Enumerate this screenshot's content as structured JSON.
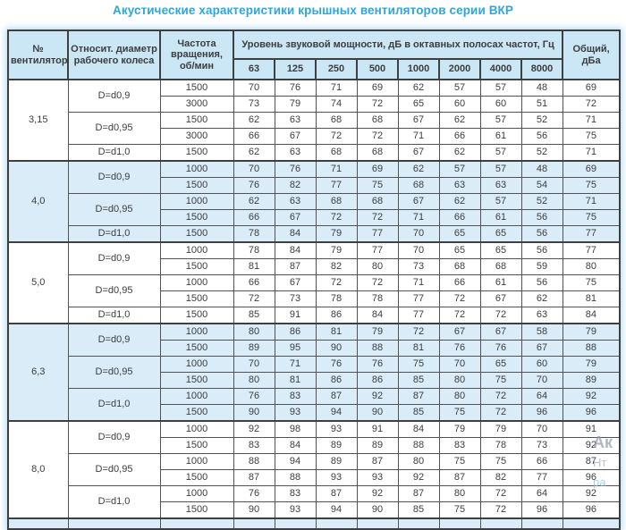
{
  "title": "Акустические характеристики крышных вентиляторов серии ВКР",
  "colors": {
    "title_accent": "#2BA7DB",
    "header_bg": "#CBE6F4",
    "shaded_section_bg": "#D9ECF8",
    "border": "#3D3F41",
    "text": "#3B3D3F"
  },
  "watermark": {
    "line1": "Ак",
    "line2": "Нт",
    "line3": "ра"
  },
  "table": {
    "headers": {
      "fan_number": "№ вентилятора",
      "rel_diameter": "Относит. диаметр рабочего колеса",
      "rotation_freq": "Частота вращения, об/мин",
      "sound_power": "Уровень звуковой мощности, дБ в октавных полосах частот, Гц",
      "frequencies": [
        "63",
        "125",
        "250",
        "500",
        "1000",
        "2000",
        "4000",
        "8000"
      ],
      "total": "Общий, дБа"
    },
    "sections": [
      {
        "fan": "3,15",
        "shaded": false,
        "groups": [
          {
            "diameter": "D=d0,9",
            "rows": [
              {
                "rpm": "1500",
                "levels": [
                  70,
                  76,
                  71,
                  69,
                  62,
                  57,
                  57,
                  48
                ],
                "total": 69
              },
              {
                "rpm": "3000",
                "levels": [
                  73,
                  79,
                  74,
                  72,
                  65,
                  60,
                  60,
                  51
                ],
                "total": 72
              }
            ]
          },
          {
            "diameter": "D=d0,95",
            "rows": [
              {
                "rpm": "1500",
                "levels": [
                  62,
                  63,
                  68,
                  68,
                  67,
                  62,
                  57,
                  52
                ],
                "total": 71
              },
              {
                "rpm": "3000",
                "levels": [
                  66,
                  67,
                  72,
                  72,
                  71,
                  66,
                  61,
                  56
                ],
                "total": 75
              }
            ]
          },
          {
            "diameter": "D=d1,0",
            "rows": [
              {
                "rpm": "1500",
                "levels": [
                  62,
                  63,
                  68,
                  68,
                  67,
                  62,
                  57,
                  52
                ],
                "total": 71
              }
            ]
          }
        ]
      },
      {
        "fan": "4,0",
        "shaded": true,
        "groups": [
          {
            "diameter": "D=d0,9",
            "rows": [
              {
                "rpm": "1000",
                "levels": [
                  70,
                  76,
                  71,
                  69,
                  62,
                  57,
                  57,
                  48
                ],
                "total": 69
              },
              {
                "rpm": "1500",
                "levels": [
                  76,
                  82,
                  77,
                  75,
                  68,
                  63,
                  63,
                  54
                ],
                "total": 75
              }
            ]
          },
          {
            "diameter": "D=d0,95",
            "rows": [
              {
                "rpm": "1000",
                "levels": [
                  62,
                  63,
                  68,
                  68,
                  67,
                  62,
                  57,
                  52
                ],
                "total": 71
              },
              {
                "rpm": "1500",
                "levels": [
                  66,
                  67,
                  72,
                  72,
                  71,
                  66,
                  61,
                  56
                ],
                "total": 75
              }
            ]
          },
          {
            "diameter": "D=d1,0",
            "rows": [
              {
                "rpm": "1500",
                "levels": [
                  78,
                  84,
                  79,
                  77,
                  70,
                  65,
                  65,
                  56
                ],
                "total": 77
              }
            ]
          }
        ]
      },
      {
        "fan": "5,0",
        "shaded": false,
        "groups": [
          {
            "diameter": "D=d0,9",
            "rows": [
              {
                "rpm": "1000",
                "levels": [
                  78,
                  84,
                  79,
                  77,
                  70,
                  65,
                  65,
                  56
                ],
                "total": 77
              },
              {
                "rpm": "1500",
                "levels": [
                  81,
                  87,
                  82,
                  80,
                  73,
                  68,
                  68,
                  59
                ],
                "total": 80
              }
            ]
          },
          {
            "diameter": "D=d0,95",
            "rows": [
              {
                "rpm": "1000",
                "levels": [
                  66,
                  67,
                  72,
                  72,
                  71,
                  66,
                  61,
                  56
                ],
                "total": 75
              },
              {
                "rpm": "1500",
                "levels": [
                  72,
                  73,
                  78,
                  78,
                  77,
                  72,
                  67,
                  62
                ],
                "total": 81
              }
            ]
          },
          {
            "diameter": "D=d1,0",
            "rows": [
              {
                "rpm": "1500",
                "levels": [
                  85,
                  91,
                  86,
                  84,
                  77,
                  72,
                  72,
                  63
                ],
                "total": 84
              }
            ]
          }
        ]
      },
      {
        "fan": "6,3",
        "shaded": true,
        "groups": [
          {
            "diameter": "D=d0,9",
            "rows": [
              {
                "rpm": "1000",
                "levels": [
                  80,
                  86,
                  81,
                  79,
                  72,
                  67,
                  67,
                  58
                ],
                "total": 79
              },
              {
                "rpm": "1500",
                "levels": [
                  89,
                  95,
                  90,
                  88,
                  81,
                  76,
                  76,
                  67
                ],
                "total": 88
              }
            ]
          },
          {
            "diameter": "D=d0,95",
            "rows": [
              {
                "rpm": "1000",
                "levels": [
                  70,
                  71,
                  76,
                  76,
                  75,
                  70,
                  65,
                  60
                ],
                "total": 79
              },
              {
                "rpm": "1500",
                "levels": [
                  80,
                  81,
                  86,
                  86,
                  85,
                  80,
                  75,
                  70
                ],
                "total": 89
              }
            ]
          },
          {
            "diameter": "D=d1,0",
            "rows": [
              {
                "rpm": "1000",
                "levels": [
                  76,
                  83,
                  87,
                  92,
                  87,
                  80,
                  72,
                  64
                ],
                "total": 92
              },
              {
                "rpm": "1500",
                "levels": [
                  90,
                  93,
                  94,
                  90,
                  85,
                  75,
                  72,
                  96
                ],
                "total": 96
              }
            ]
          }
        ]
      },
      {
        "fan": "8,0",
        "shaded": false,
        "groups": [
          {
            "diameter": "D=d0,9",
            "rows": [
              {
                "rpm": "1000",
                "levels": [
                  92,
                  98,
                  93,
                  91,
                  84,
                  79,
                  79,
                  70
                ],
                "total": 91
              },
              {
                "rpm": "1500",
                "levels": [
                  83,
                  84,
                  89,
                  89,
                  88,
                  83,
                  78,
                  73
                ],
                "total": 92
              }
            ]
          },
          {
            "diameter": "D=d0,95",
            "rows": [
              {
                "rpm": "1000",
                "levels": [
                  88,
                  94,
                  89,
                  87,
                  80,
                  75,
                  75,
                  66
                ],
                "total": 87
              },
              {
                "rpm": "1500",
                "levels": [
                  87,
                  88,
                  93,
                  93,
                  92,
                  87,
                  82,
                  77
                ],
                "total": 96
              }
            ]
          },
          {
            "diameter": "D=d1,0",
            "rows": [
              {
                "rpm": "1000",
                "levels": [
                  76,
                  83,
                  87,
                  92,
                  87,
                  80,
                  72,
                  64
                ],
                "total": 92
              },
              {
                "rpm": "1500",
                "levels": [
                  90,
                  93,
                  94,
                  90,
                  85,
                  75,
                  72,
                  96
                ],
                "total": 96
              }
            ]
          }
        ]
      }
    ]
  }
}
